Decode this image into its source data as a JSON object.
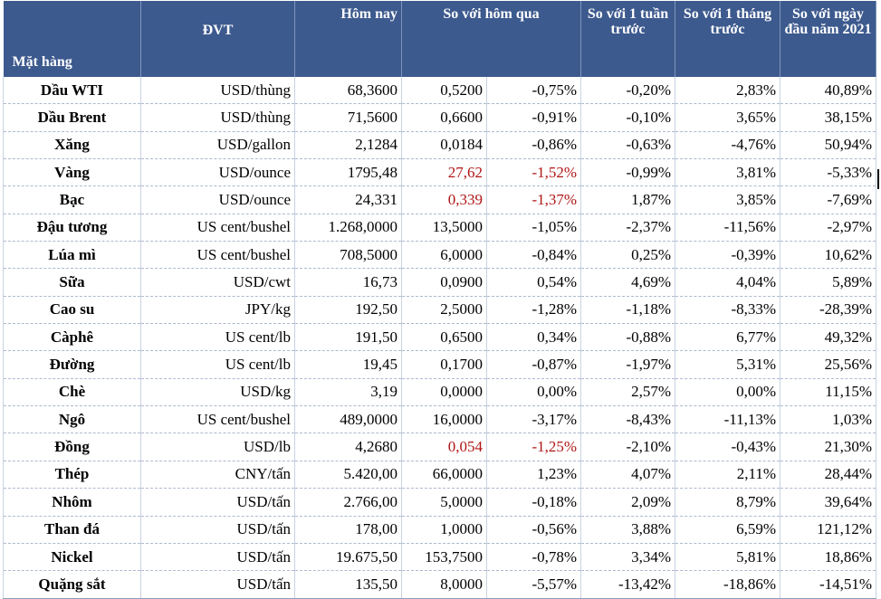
{
  "headers": {
    "item": "Mặt hàng",
    "unit": "ĐVT",
    "today": "Hôm nay",
    "vs_yesterday": "So với hôm qua",
    "vs_week": "So với 1 tuần trước",
    "vs_month": "So với 1 tháng trước",
    "vs_year_start": "So với ngày đầu năm 2021"
  },
  "colors": {
    "header_bg": "#3d5a8e",
    "negative_highlight": "#b01515"
  },
  "rows": [
    {
      "name": "Dầu WTI",
      "unit": "USD/thùng",
      "today": "68,3600",
      "change": "0,5200",
      "change_pct": "-0,75%",
      "week": "-0,20%",
      "month": "2,83%",
      "ytd": "40,89%"
    },
    {
      "name": "Dầu Brent",
      "unit": "USD/thùng",
      "today": "71,5600",
      "change": "0,6600",
      "change_pct": "-0,91%",
      "week": "-0,10%",
      "month": "3,65%",
      "ytd": "38,15%"
    },
    {
      "name": "Xăng",
      "unit": "USD/gallon",
      "today": "2,1284",
      "change": "0,0184",
      "change_pct": "-0,86%",
      "week": "-0,63%",
      "month": "-4,76%",
      "ytd": "50,94%"
    },
    {
      "name": "Vàng",
      "unit": "USD/ounce",
      "today": "1795,48",
      "change": "27,62",
      "change_pct": "-1,52%",
      "week": "-0,99%",
      "month": "3,81%",
      "ytd": "-5,33%"
    },
    {
      "name": "Bạc",
      "unit": "USD/ounce",
      "today": "24,331",
      "change": "0,339",
      "change_pct": "-1,37%",
      "week": "1,87%",
      "month": "3,85%",
      "ytd": "-7,69%"
    },
    {
      "name": "Đậu tương",
      "unit": "US cent/bushel",
      "today": "1.268,0000",
      "change": "13,5000",
      "change_pct": "-1,05%",
      "week": "-2,37%",
      "month": "-11,56%",
      "ytd": "-2,97%"
    },
    {
      "name": "Lúa mì",
      "unit": "US cent/bushel",
      "today": "708,5000",
      "change": "6,0000",
      "change_pct": "-0,84%",
      "week": "0,25%",
      "month": "-0,39%",
      "ytd": "10,62%"
    },
    {
      "name": "Sữa",
      "unit": "USD/cwt",
      "today": "16,73",
      "change": "0,0900",
      "change_pct": "0,54%",
      "week": "4,69%",
      "month": "4,04%",
      "ytd": "5,89%"
    },
    {
      "name": "Cao su",
      "unit": "JPY/kg",
      "today": "192,50",
      "change": "2,5000",
      "change_pct": "-1,28%",
      "week": "-1,18%",
      "month": "-8,33%",
      "ytd": "-28,39%"
    },
    {
      "name": "Càphê",
      "unit": "US cent/lb",
      "today": "191,50",
      "change": "0,6500",
      "change_pct": "0,34%",
      "week": "-0,88%",
      "month": "6,77%",
      "ytd": "49,32%"
    },
    {
      "name": "Đường",
      "unit": "US cent/lb",
      "today": "19,45",
      "change": "0,1700",
      "change_pct": "-0,87%",
      "week": "-1,97%",
      "month": "5,31%",
      "ytd": "25,56%"
    },
    {
      "name": "Chè",
      "unit": "USD/kg",
      "today": "3,19",
      "change": "0,0000",
      "change_pct": "0,00%",
      "week": "2,57%",
      "month": "0,00%",
      "ytd": "11,15%"
    },
    {
      "name": "Ngô",
      "unit": "US cent/bushel",
      "today": "489,0000",
      "change": "16,0000",
      "change_pct": "-3,17%",
      "week": "-8,43%",
      "month": "-11,13%",
      "ytd": "1,03%"
    },
    {
      "name": "Đồng",
      "unit": "USD/lb",
      "today": "4,2680",
      "change": "0,054",
      "change_pct": "-1,25%",
      "week": "-2,10%",
      "month": "-0,43%",
      "ytd": "21,30%"
    },
    {
      "name": "Thép",
      "unit": "CNY/tấn",
      "today": "5.420,00",
      "change": "66,0000",
      "change_pct": "1,23%",
      "week": "4,07%",
      "month": "2,11%",
      "ytd": "28,44%"
    },
    {
      "name": "Nhôm",
      "unit": "USD/tấn",
      "today": "2.766,00",
      "change": "5,0000",
      "change_pct": "-0,18%",
      "week": "2,09%",
      "month": "8,79%",
      "ytd": "39,64%"
    },
    {
      "name": "Than đá",
      "unit": "USD/tấn",
      "today": "178,00",
      "change": "1,0000",
      "change_pct": "-0,56%",
      "week": "3,88%",
      "month": "6,59%",
      "ytd": "121,12%"
    },
    {
      "name": "Nickel",
      "unit": "USD/tấn",
      "today": "19.675,50",
      "change": "153,7500",
      "change_pct": "-0,78%",
      "week": "3,34%",
      "month": "5,81%",
      "ytd": "18,86%"
    },
    {
      "name": "Quặng sắt",
      "unit": "USD/tấn",
      "today": "135,50",
      "change": "8,0000",
      "change_pct": "-5,57%",
      "week": "-13,42%",
      "month": "-18,86%",
      "ytd": "-14,51%"
    }
  ],
  "red_rows": [
    3,
    4,
    13
  ]
}
